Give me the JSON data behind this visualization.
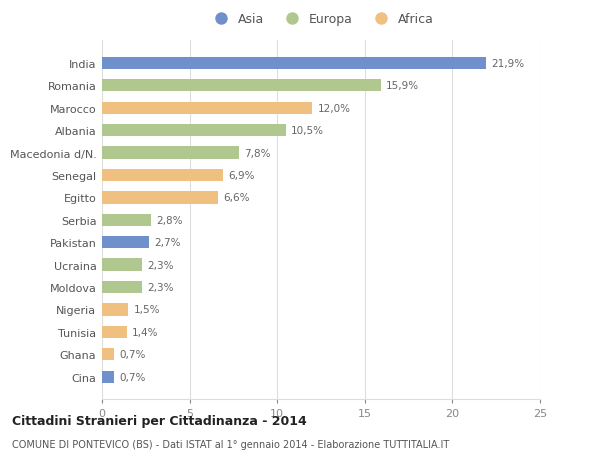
{
  "categories": [
    "India",
    "Romania",
    "Marocco",
    "Albania",
    "Macedonia d/N.",
    "Senegal",
    "Egitto",
    "Serbia",
    "Pakistan",
    "Ucraina",
    "Moldova",
    "Nigeria",
    "Tunisia",
    "Ghana",
    "Cina"
  ],
  "values": [
    21.9,
    15.9,
    12.0,
    10.5,
    7.8,
    6.9,
    6.6,
    2.8,
    2.7,
    2.3,
    2.3,
    1.5,
    1.4,
    0.7,
    0.7
  ],
  "labels": [
    "21,9%",
    "15,9%",
    "12,0%",
    "10,5%",
    "7,8%",
    "6,9%",
    "6,6%",
    "2,8%",
    "2,7%",
    "2,3%",
    "2,3%",
    "1,5%",
    "1,4%",
    "0,7%",
    "0,7%"
  ],
  "colors": [
    "#7090cc",
    "#b0c890",
    "#f0c080",
    "#b0c890",
    "#b0c890",
    "#f0c080",
    "#f0c080",
    "#b0c890",
    "#7090cc",
    "#b0c890",
    "#b0c890",
    "#f0c080",
    "#f0c080",
    "#f0c080",
    "#7090cc"
  ],
  "legend": [
    {
      "label": "Asia",
      "color": "#7090cc"
    },
    {
      "label": "Europa",
      "color": "#b0c890"
    },
    {
      "label": "Africa",
      "color": "#f0c080"
    }
  ],
  "xlim": [
    0,
    25
  ],
  "xticks": [
    0,
    5,
    10,
    15,
    20,
    25
  ],
  "title_bold": "Cittadini Stranieri per Cittadinanza - 2014",
  "subtitle": "COMUNE DI PONTEVICO (BS) - Dati ISTAT al 1° gennaio 2014 - Elaborazione TUTTITALIA.IT",
  "bg_color": "#ffffff",
  "grid_color": "#dddddd",
  "bar_height": 0.55
}
